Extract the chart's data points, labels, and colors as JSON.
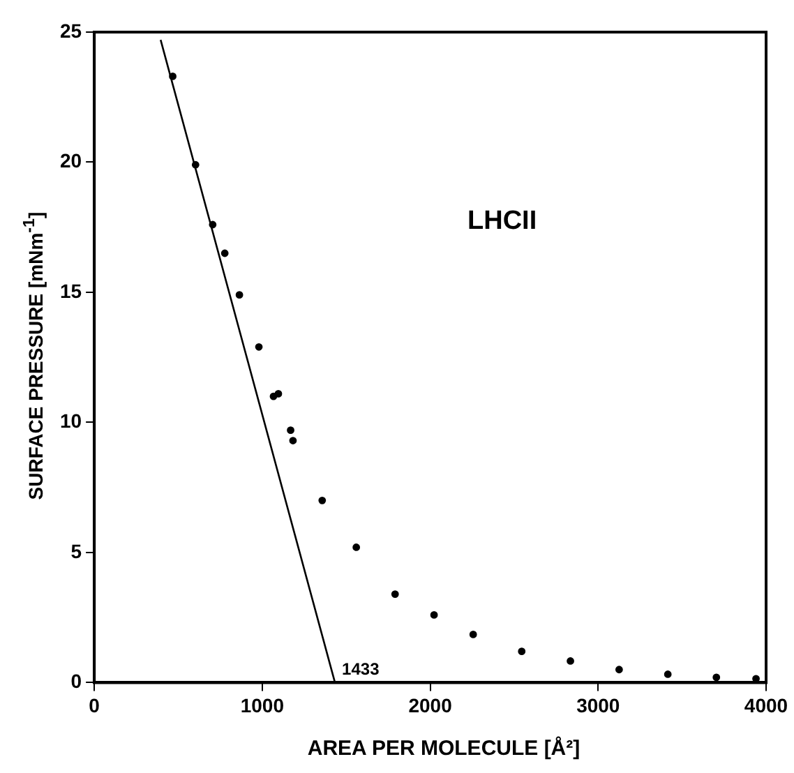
{
  "chart_data": {
    "type": "scatter",
    "xlabel": "AREA PER MOLECULE [Å²]",
    "ylabel": "SURFACE PRESSURE [mNm$^{-1}$]",
    "xlim": [
      0,
      4000
    ],
    "xticks": [
      0,
      1000,
      2000,
      3000,
      4000
    ],
    "ylim": [
      0,
      25
    ],
    "yticks": [
      0,
      5,
      10,
      15,
      20,
      25
    ],
    "grid": false,
    "legend": false,
    "annotations": [
      "LHCII",
      {
        "text": "1433",
        "x": 1433,
        "y": 0
      }
    ],
    "series": [
      {
        "color": "#000000",
        "x": [
          467,
          603,
          705,
          777,
          864,
          980,
          1067,
          1096,
          1169,
          1183,
          1357,
          1560,
          1791,
          2023,
          2256,
          2545,
          2835,
          3125,
          3415,
          3704,
          3940
        ],
        "values": [
          23.3,
          19.9,
          17.6,
          16.5,
          14.9,
          12.9,
          11.0,
          11.1,
          9.7,
          9.3,
          7.0,
          5.2,
          3.4,
          2.6,
          1.85,
          1.2,
          0.83,
          0.5,
          0.32,
          0.2,
          0.15
        ]
      },
      {
        "type": "line",
        "color": "#000000",
        "x": [
          395,
          1433
        ],
        "values": [
          24.7,
          0
        ]
      }
    ]
  }
}
